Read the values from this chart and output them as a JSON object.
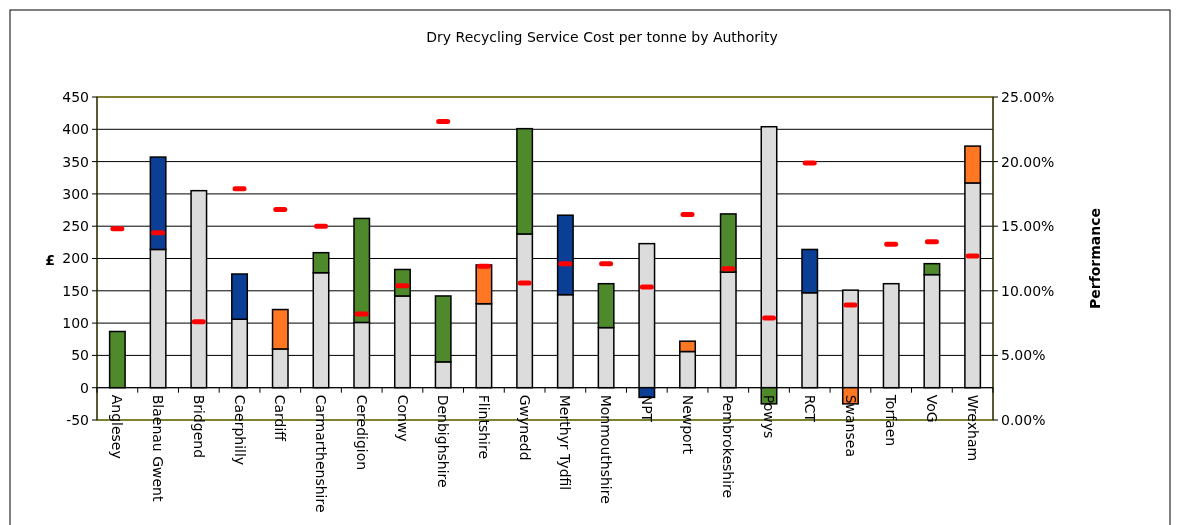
{
  "chart_data": {
    "type": "bar",
    "title": "Dry Recycling Service Cost per tonne by Authority",
    "ylabel": "£",
    "y2label": "Performance",
    "categories": [
      "Anglesey",
      "Blaenau Gwent",
      "Bridgend",
      "Caerphilly",
      "Cardiff",
      "Carmarthenshire",
      "Ceredigion",
      "Conwy",
      "Denbighshire",
      "Flintshire",
      "Gwynedd",
      "Merthyr Tydfil",
      "Monmouthshire",
      "NPT",
      "Newport",
      "Pembrokeshire",
      "Powys",
      "RCT",
      "Swansea",
      "Torfaen",
      "VoG",
      "Wrexham"
    ],
    "stacked": true,
    "grid": "y",
    "ylim": [
      -50,
      450
    ],
    "yticks": [
      -50,
      0,
      50,
      100,
      150,
      200,
      250,
      300,
      350,
      400,
      450
    ],
    "y2lim": [
      0,
      25
    ],
    "y2ticks": [
      {
        "value": 0,
        "label": "0.00%"
      },
      {
        "value": 5,
        "label": "5.00%"
      },
      {
        "value": 10,
        "label": "10.00%"
      },
      {
        "value": 15,
        "label": "15.00%"
      },
      {
        "value": 20,
        "label": "20.00%"
      },
      {
        "value": 25,
        "label": "25.00%"
      }
    ],
    "series": [
      {
        "color": "#dcdcdc",
        "values": [
          0,
          214,
          305,
          106,
          60,
          178,
          101,
          142,
          40,
          130,
          238,
          144,
          93,
          223,
          56,
          179,
          404,
          147,
          151,
          161,
          175,
          317
        ]
      },
      {
        "colors": [
          "#4e8a2c",
          "#0b3f95",
          null,
          "#0b3f95",
          "#ff7722",
          "#4e8a2c",
          "#4e8a2c",
          "#4e8a2c",
          "#4e8a2c",
          "#ff7722",
          "#4e8a2c",
          "#0b3f95",
          "#4e8a2c",
          "#0b3f95",
          "#ff7722",
          "#4e8a2c",
          "#4e8a2c",
          "#0b3f95",
          "#ff7722",
          null,
          "#4e8a2c",
          "#ff7722"
        ],
        "values": [
          87,
          143,
          null,
          70,
          61,
          31,
          161,
          41,
          102,
          60,
          163,
          123,
          68,
          -15,
          16,
          90,
          -25,
          67,
          -25,
          null,
          17,
          57
        ]
      },
      {
        "type": "scatter",
        "axis": "y2",
        "color": "#ff0000",
        "values": [
          14.8,
          14.5,
          7.6,
          17.9,
          16.3,
          15.0,
          8.2,
          10.4,
          23.1,
          11.9,
          10.6,
          12.1,
          12.1,
          10.3,
          15.9,
          11.7,
          7.9,
          19.9,
          8.9,
          13.6,
          13.8,
          12.7
        ]
      }
    ]
  }
}
